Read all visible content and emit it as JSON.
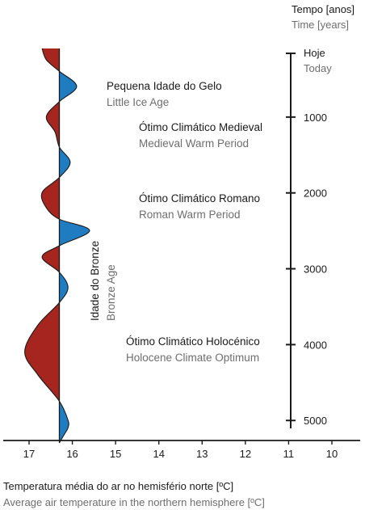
{
  "chart_data": {
    "type": "area",
    "title": "",
    "colors": {
      "warm": "#a6251e",
      "cold": "#1f7cc1",
      "axis": "#1a1a1a",
      "secondary_text": "#6e6e6e"
    },
    "time_axis": {
      "title_pt": "Tempo [anos]",
      "title_en": "Time [years]",
      "today_pt": "Hoje",
      "today_en": "Today",
      "ticks": [
        1000,
        2000,
        3000,
        4000,
        5000
      ],
      "range": [
        0,
        5200
      ]
    },
    "temperature_axis": {
      "label_pt": "Temperatura média do ar no hemisfério norte [ºC]",
      "label_en": "Average air temperature in the northern hemisphere [ºC]",
      "ticks": [
        17,
        16,
        15,
        14,
        13,
        12,
        11,
        10
      ],
      "range": [
        17.5,
        9.5
      ],
      "reference": 16.3
    },
    "series": {
      "years": [
        0,
        150,
        300,
        500,
        700,
        900,
        1100,
        1300,
        1500,
        1700,
        1900,
        2100,
        2250,
        2400,
        2600,
        2750,
        2950,
        3150,
        3350,
        3650,
        4000,
        4300,
        4650,
        4900,
        5000,
        5100,
        5200
      ],
      "temperature": [
        16.7,
        16.6,
        16.3,
        15.9,
        16.3,
        16.6,
        16.4,
        16.3,
        16.05,
        16.3,
        16.7,
        16.6,
        16.3,
        15.6,
        16.3,
        16.7,
        16.3,
        16.1,
        16.3,
        16.8,
        17.1,
        16.8,
        16.3,
        16.1,
        16.1,
        16.2,
        16.3
      ]
    },
    "annotations": [
      {
        "pt": "Pequena Idade do Gelo",
        "en": "Little Ice Age",
        "year": 350
      },
      {
        "pt": "Ótimo Climático Medieval",
        "en": "Medieval Warm Period",
        "year": 1000
      },
      {
        "pt": "Ótimo Climático Romano",
        "en": "Roman Warm Period",
        "year": 2000
      },
      {
        "pt": "Ótimo Climático Holocénico",
        "en": "Holocene Climate Optimum",
        "year": 4000
      }
    ],
    "vertical_annotation": {
      "pt": "Idade do Bronze",
      "en": "Bronze Age"
    }
  }
}
